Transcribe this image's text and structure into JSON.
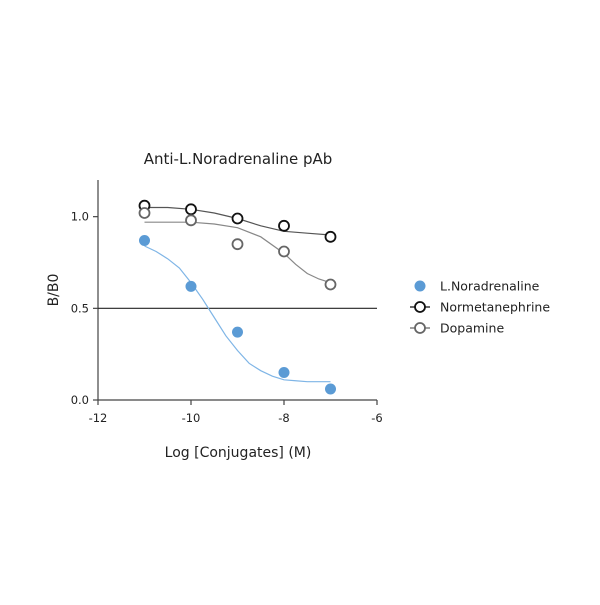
{
  "chart_data": {
    "type": "scatter",
    "title": "Anti-L.Noradrenaline pAb",
    "xlabel": "Log [Conjugates] (M)",
    "ylabel": "B/B0",
    "xlim": [
      -12,
      -6
    ],
    "ylim": [
      0,
      1.2
    ],
    "xticks": [
      -12,
      -10,
      -8,
      -6
    ],
    "xtick_labels": [
      "-12",
      "-10",
      "-8",
      "-6"
    ],
    "yticks": [
      0,
      0.5,
      1
    ],
    "ytick_labels": [
      "0.0",
      "0.5",
      "1.0"
    ],
    "reference_line_y": 0.5,
    "grid": false,
    "legend_position": "right",
    "series": [
      {
        "name": "L.Noradrenaline",
        "marker": "filled-circle",
        "color": "#5b9bd5",
        "x": [
          -11,
          -10,
          -9,
          -8,
          -7
        ],
        "y": [
          0.87,
          0.62,
          0.37,
          0.15,
          0.06
        ],
        "fit_x": [
          -11,
          -10.75,
          -10.5,
          -10.25,
          -10,
          -9.75,
          -9.5,
          -9.25,
          -9,
          -8.75,
          -8.5,
          -8.25,
          -8,
          -7.75,
          -7.5,
          -7.25,
          -7
        ],
        "fit_y": [
          0.84,
          0.81,
          0.77,
          0.72,
          0.64,
          0.55,
          0.45,
          0.35,
          0.27,
          0.2,
          0.16,
          0.13,
          0.11,
          0.105,
          0.1,
          0.1,
          0.1
        ]
      },
      {
        "name": "Normetanephrine",
        "marker": "open-circle",
        "color": "#111111",
        "x": [
          -11,
          -10,
          -9,
          -8,
          -7
        ],
        "y": [
          1.06,
          1.04,
          0.99,
          0.95,
          0.89
        ],
        "fit_x": [
          -11,
          -10.5,
          -10,
          -9.5,
          -9,
          -8.5,
          -8,
          -7.5,
          -7
        ],
        "fit_y": [
          1.05,
          1.05,
          1.04,
          1.02,
          0.99,
          0.95,
          0.92,
          0.91,
          0.9
        ]
      },
      {
        "name": "Dopamine",
        "marker": "open-circle",
        "color": "#666666",
        "x": [
          -11,
          -10,
          -9,
          -8,
          -7
        ],
        "y": [
          1.02,
          0.98,
          0.85,
          0.81,
          0.63
        ],
        "fit_x": [
          -11,
          -10.5,
          -10,
          -9.5,
          -9,
          -8.5,
          -8,
          -7.75,
          -7.5,
          -7.25,
          -7
        ],
        "fit_y": [
          0.97,
          0.97,
          0.97,
          0.96,
          0.94,
          0.89,
          0.8,
          0.74,
          0.69,
          0.66,
          0.64
        ]
      }
    ]
  }
}
